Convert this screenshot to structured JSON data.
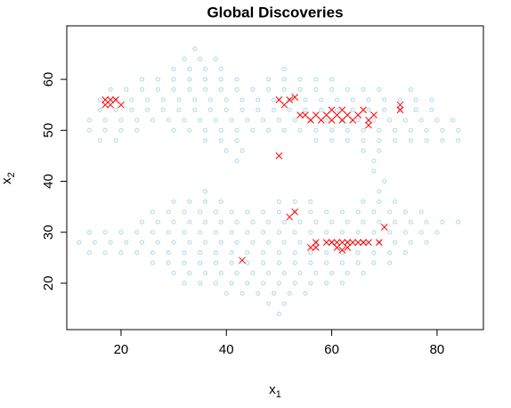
{
  "chart_data": {
    "type": "scatter",
    "title": "Global Discoveries",
    "xlabel": "x",
    "xlabel_sub": "1",
    "ylabel": "x",
    "ylabel_sub": "2",
    "xlim": [
      9.7,
      88.8
    ],
    "ylim": [
      10.9,
      70.5
    ],
    "xticks": [
      20,
      40,
      60,
      80
    ],
    "yticks": [
      20,
      30,
      40,
      50,
      60
    ],
    "series": [
      {
        "color": "#add8e6",
        "marker": "circle",
        "x": [
          34,
          32,
          35,
          38,
          30,
          33,
          36,
          39,
          51,
          24,
          27,
          30,
          33,
          36,
          39,
          42,
          48,
          51,
          54,
          57,
          60,
          18,
          21,
          24,
          27,
          30,
          33,
          36,
          39,
          42,
          45,
          48,
          51,
          54,
          57,
          60,
          63,
          66,
          69,
          75,
          16,
          19,
          22,
          25,
          28,
          31,
          34,
          37,
          40,
          43,
          46,
          49,
          52,
          55,
          58,
          61,
          64,
          67,
          70,
          73,
          76,
          79,
          16,
          19,
          22,
          25,
          28,
          31,
          34,
          37,
          40,
          43,
          46,
          49,
          52,
          55,
          58,
          61,
          64,
          67,
          70,
          73,
          76,
          79,
          14,
          17,
          20,
          23,
          26,
          29,
          32,
          35,
          38,
          41,
          44,
          47,
          50,
          53,
          56,
          59,
          62,
          65,
          68,
          71,
          74,
          77,
          80,
          83,
          14,
          17,
          20,
          23,
          30,
          33,
          36,
          39,
          42,
          45,
          48,
          51,
          54,
          57,
          60,
          63,
          66,
          69,
          72,
          75,
          78,
          81,
          84,
          16,
          19,
          36,
          39,
          42,
          57,
          60,
          63,
          66,
          69,
          72,
          75,
          78,
          81,
          84,
          40,
          43,
          66,
          69,
          42,
          68,
          68,
          70,
          36,
          69,
          30,
          33,
          36,
          39,
          50,
          53,
          56,
          66,
          69,
          72,
          26,
          29,
          32,
          35,
          38,
          41,
          44,
          47,
          50,
          53,
          56,
          59,
          62,
          65,
          68,
          71,
          74,
          77,
          24,
          27,
          30,
          33,
          36,
          39,
          42,
          45,
          48,
          51,
          54,
          57,
          60,
          63,
          66,
          69,
          72,
          75,
          78,
          81,
          84,
          14,
          17,
          20,
          23,
          26,
          29,
          32,
          35,
          38,
          41,
          44,
          47,
          50,
          53,
          56,
          59,
          62,
          65,
          68,
          71,
          74,
          77,
          80,
          12,
          15,
          18,
          21,
          24,
          27,
          30,
          33,
          36,
          39,
          42,
          45,
          48,
          51,
          54,
          57,
          60,
          63,
          66,
          69,
          72,
          75,
          78,
          14,
          17,
          20,
          23,
          26,
          29,
          32,
          35,
          38,
          41,
          44,
          47,
          50,
          53,
          56,
          59,
          62,
          65,
          68,
          71,
          74,
          26,
          29,
          32,
          35,
          38,
          41,
          44,
          47,
          50,
          53,
          56,
          59,
          62,
          65,
          68,
          71,
          30,
          33,
          36,
          39,
          42,
          45,
          48,
          51,
          54,
          57,
          60,
          63,
          66,
          32,
          35,
          38,
          41,
          44,
          47,
          50,
          53,
          56,
          59,
          62,
          40,
          43,
          46,
          49,
          52,
          55,
          48,
          51,
          50
        ],
        "values": [
          66,
          64,
          64,
          64,
          62,
          62,
          62,
          62,
          62,
          60,
          60,
          60,
          60,
          60,
          60,
          60,
          60,
          60,
          60,
          60,
          60,
          58,
          58,
          58,
          58,
          58,
          58,
          58,
          58,
          58,
          58,
          58,
          58,
          58,
          58,
          58,
          58,
          58,
          58,
          58,
          56,
          56,
          56,
          56,
          56,
          56,
          56,
          56,
          56,
          56,
          56,
          56,
          56,
          56,
          56,
          56,
          56,
          56,
          56,
          56,
          56,
          56,
          54,
          54,
          54,
          54,
          54,
          54,
          54,
          54,
          54,
          54,
          54,
          54,
          54,
          54,
          54,
          54,
          54,
          54,
          54,
          54,
          54,
          54,
          52,
          52,
          52,
          52,
          52,
          52,
          52,
          52,
          52,
          52,
          52,
          52,
          52,
          52,
          52,
          52,
          52,
          52,
          52,
          52,
          52,
          52,
          52,
          52,
          50,
          50,
          50,
          50,
          50,
          50,
          50,
          50,
          50,
          50,
          50,
          50,
          50,
          50,
          50,
          50,
          50,
          50,
          50,
          50,
          50,
          50,
          50,
          48,
          48,
          48,
          48,
          48,
          48,
          48,
          48,
          48,
          48,
          48,
          48,
          48,
          48,
          48,
          46,
          46,
          46,
          46,
          44,
          44,
          42,
          40,
          38,
          38,
          36,
          36,
          36,
          36,
          36,
          36,
          36,
          36,
          36,
          36,
          34,
          34,
          34,
          34,
          34,
          34,
          34,
          34,
          34,
          34,
          34,
          34,
          34,
          34,
          34,
          34,
          34,
          34,
          32,
          32,
          32,
          32,
          32,
          32,
          32,
          32,
          32,
          32,
          32,
          32,
          32,
          32,
          32,
          32,
          32,
          32,
          32,
          32,
          32,
          30,
          30,
          30,
          30,
          30,
          30,
          30,
          30,
          30,
          30,
          30,
          30,
          30,
          30,
          30,
          30,
          30,
          30,
          30,
          30,
          30,
          30,
          30,
          28,
          28,
          28,
          28,
          28,
          28,
          28,
          28,
          28,
          28,
          28,
          28,
          28,
          28,
          28,
          28,
          28,
          28,
          28,
          28,
          28,
          28,
          28,
          26,
          26,
          26,
          26,
          26,
          26,
          26,
          26,
          26,
          26,
          26,
          26,
          26,
          26,
          26,
          26,
          26,
          26,
          26,
          26,
          26,
          24,
          24,
          24,
          24,
          24,
          24,
          24,
          24,
          24,
          24,
          24,
          24,
          24,
          24,
          24,
          24,
          22,
          22,
          22,
          22,
          22,
          22,
          22,
          22,
          22,
          22,
          22,
          22,
          22,
          20,
          20,
          20,
          20,
          20,
          20,
          20,
          20,
          20,
          20,
          20,
          18,
          18,
          18,
          18,
          18,
          18,
          16,
          16,
          14
        ]
      },
      {
        "color": "#ff0000",
        "marker": "cross",
        "x": [
          17,
          17,
          18,
          19,
          20,
          18,
          50,
          51,
          52,
          53,
          50,
          54,
          55,
          56,
          57,
          58,
          59,
          60,
          60,
          61,
          62,
          62,
          63,
          64,
          65,
          66,
          67,
          68,
          67,
          73,
          73,
          52,
          53,
          43,
          56,
          57,
          57,
          59,
          60,
          61,
          61,
          62,
          62,
          63,
          63,
          64,
          65,
          66,
          67,
          69,
          70
        ],
        "values": [
          55,
          56,
          56,
          56,
          55,
          55,
          56,
          55,
          56,
          56.5,
          45,
          53,
          53,
          52,
          53,
          52,
          53,
          54,
          52,
          53,
          52,
          54,
          53,
          52,
          53,
          54,
          52,
          53,
          51,
          54,
          55,
          33,
          34,
          24.5,
          27,
          28,
          27,
          28,
          28,
          28,
          27,
          26.5,
          28,
          27,
          28,
          28,
          28,
          28,
          28,
          28,
          31
        ]
      }
    ]
  }
}
